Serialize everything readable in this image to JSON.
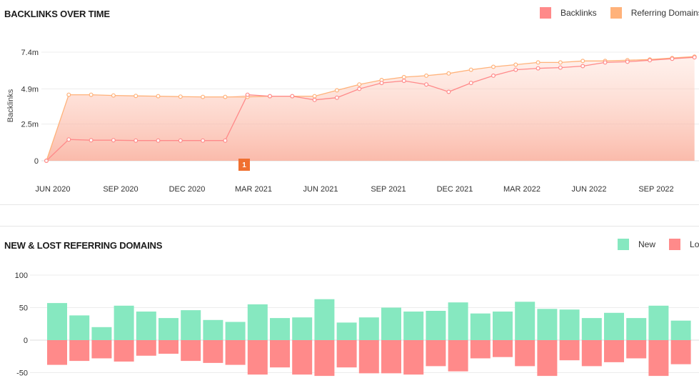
{
  "backlinks_chart": {
    "title": "BACKLINKS OVER TIME",
    "legend": [
      {
        "name": "Backlinks",
        "color": "#ff8a8a"
      },
      {
        "name": "Referring Domains",
        "color": "#ffb27a"
      }
    ],
    "ylabel": "Backlinks",
    "y_ticks": [
      "7.4m",
      "4.9m",
      "2.5m",
      "0"
    ],
    "x_ticks": [
      "JUN 2020",
      "SEP 2020",
      "DEC 2020",
      "MAR 2021",
      "JUN 2021",
      "SEP 2021",
      "DEC 2021",
      "MAR 2022",
      "JUN 2022",
      "SEP 2022"
    ],
    "annotation": "1"
  },
  "domains_chart": {
    "title": "NEW & LOST REFERRING DOMAINS",
    "legend": [
      {
        "name": "New",
        "color": "#86e8c0"
      },
      {
        "name": "Lost",
        "color": "#ff8a8a"
      }
    ],
    "y_ticks": [
      "100",
      "50",
      "0",
      "-50"
    ]
  },
  "chart_data": [
    {
      "type": "line",
      "title": "BACKLINKS OVER TIME",
      "ylabel": "Backlinks",
      "ylim": [
        0,
        7.4
      ],
      "y_unit": "m",
      "x_range": [
        "JUN 2020",
        "OCT 2022"
      ],
      "grid": true,
      "legend_position": "top-right",
      "series": [
        {
          "name": "Backlinks",
          "color": "#ff8a8a",
          "values": [
            0,
            1.45,
            1.4,
            1.4,
            1.38,
            1.38,
            1.38,
            1.38,
            1.38,
            4.5,
            4.4,
            4.4,
            4.15,
            4.3,
            4.9,
            5.3,
            5.45,
            5.2,
            4.7,
            5.3,
            5.8,
            6.2,
            6.3,
            6.35,
            6.45,
            6.7,
            6.75,
            6.85,
            6.95,
            7.05
          ]
        },
        {
          "name": "Referring Domains",
          "color": "#ffb27a",
          "values": [
            0,
            4.5,
            4.5,
            4.45,
            4.42,
            4.4,
            4.37,
            4.35,
            4.35,
            4.35,
            4.4,
            4.4,
            4.4,
            4.8,
            5.2,
            5.5,
            5.7,
            5.8,
            5.95,
            6.2,
            6.4,
            6.55,
            6.7,
            6.7,
            6.8,
            6.8,
            6.85,
            6.9,
            7.0,
            7.1
          ]
        }
      ]
    },
    {
      "type": "bar",
      "title": "NEW & LOST REFERRING DOMAINS",
      "ylim": [
        -50,
        100
      ],
      "grid": true,
      "legend_position": "top-right",
      "series": [
        {
          "name": "New",
          "color": "#86e8c0",
          "values": [
            57,
            38,
            20,
            53,
            44,
            34,
            46,
            31,
            28,
            55,
            34,
            35,
            63,
            27,
            35,
            50,
            44,
            45,
            58,
            41,
            44,
            59,
            48,
            47,
            34,
            42,
            34,
            53,
            30
          ]
        },
        {
          "name": "Lost",
          "color": "#ff8a8a",
          "values": [
            -38,
            -32,
            -28,
            -33,
            -24,
            -21,
            -32,
            -35,
            -38,
            -53,
            -42,
            -53,
            -55,
            -42,
            -51,
            -51,
            -53,
            -40,
            -48,
            -28,
            -26,
            -40,
            -55,
            -31,
            -40,
            -34,
            -28,
            -55,
            -37
          ]
        }
      ]
    }
  ]
}
